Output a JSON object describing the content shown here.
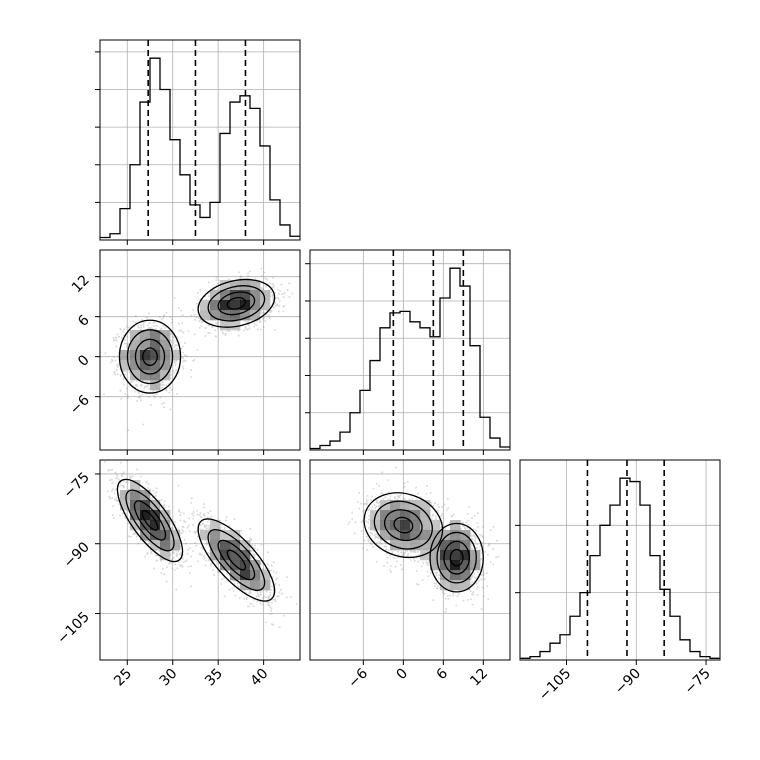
{
  "chart_data": {
    "type": "corner",
    "title": "",
    "parameters": [
      "",
      "",
      ""
    ],
    "ranges": [
      [
        22,
        44
      ],
      [
        -14,
        16
      ],
      [
        -115,
        -72
      ]
    ],
    "quantiles": [
      [
        27.3,
        32.5,
        38.0
      ],
      [
        -1.5,
        4.5,
        9.0
      ],
      [
        -100.5,
        -92.0,
        -84.0
      ]
    ],
    "ticks": {
      "p0": [
        25,
        30,
        35,
        40
      ],
      "p1": [
        -6,
        0,
        6,
        12
      ],
      "p2": [
        -105,
        -90,
        -75
      ]
    },
    "tick_labels": {
      "p0": [
        "25",
        "30",
        "35",
        "40"
      ],
      "p1": [
        "−6",
        "0",
        "6",
        "12"
      ],
      "p2": [
        "−105",
        "−90",
        "−75"
      ]
    },
    "histograms": [
      {
        "param": 0,
        "bin_edges": [
          22.0,
          23.1,
          24.2,
          25.3,
          26.4,
          27.5,
          28.6,
          29.7,
          30.8,
          31.9,
          33.0,
          34.1,
          35.2,
          36.3,
          37.4,
          38.5,
          39.6,
          40.7,
          41.8,
          42.9,
          44.0
        ],
        "counts": [
          2,
          5,
          25,
          60,
          110,
          145,
          120,
          80,
          52,
          28,
          18,
          30,
          85,
          110,
          115,
          105,
          75,
          32,
          12,
          3
        ]
      },
      {
        "param": 1,
        "bin_edges": [
          -14.0,
          -12.5,
          -11.0,
          -9.5,
          -8.0,
          -6.5,
          -5.0,
          -3.5,
          -2.0,
          -0.5,
          1.0,
          2.5,
          4.0,
          5.5,
          7.0,
          8.5,
          10.0,
          11.5,
          13.0,
          14.5,
          16.0
        ],
        "counts": [
          1,
          3,
          6,
          12,
          25,
          40,
          60,
          82,
          92,
          93,
          86,
          82,
          76,
          102,
          122,
          110,
          70,
          22,
          8,
          2
        ]
      },
      {
        "param": 2,
        "bin_edges": [
          -115.0,
          -112.85,
          -110.7,
          -108.55,
          -106.4,
          -104.25,
          -102.1,
          -99.95,
          -97.8,
          -95.65,
          -93.5,
          -91.35,
          -89.2,
          -87.05,
          -84.9,
          -82.75,
          -80.6,
          -78.45,
          -76.3,
          -74.15,
          -72.0
        ],
        "counts": [
          1,
          2,
          5,
          10,
          15,
          26,
          40,
          62,
          80,
          92,
          108,
          106,
          92,
          62,
          42,
          26,
          12,
          5,
          2,
          1
        ]
      }
    ],
    "density_clusters": [
      {
        "pair": [
          0,
          1
        ],
        "modes": [
          {
            "center": [
              27.5,
              0.0
            ],
            "sd": [
              1.6,
              2.6
            ],
            "corr": 0.0,
            "weight": 0.5
          },
          {
            "center": [
              37.0,
              8.0
            ],
            "sd": [
              2.0,
              1.7
            ],
            "corr": 0.25,
            "weight": 0.5
          }
        ]
      },
      {
        "pair": [
          0,
          2
        ],
        "modes": [
          {
            "center": [
              27.5,
              -85.0
            ],
            "sd": [
              1.7,
              4.2
            ],
            "corr": -0.75,
            "weight": 0.5
          },
          {
            "center": [
              37.0,
              -93.5
            ],
            "sd": [
              2.0,
              4.2
            ],
            "corr": -0.75,
            "weight": 0.5
          }
        ]
      },
      {
        "pair": [
          1,
          2
        ],
        "modes": [
          {
            "center": [
              0.0,
              -86.0
            ],
            "sd": [
              2.8,
              3.3
            ],
            "corr": -0.15,
            "weight": 0.5
          },
          {
            "center": [
              8.0,
              -93.0
            ],
            "sd": [
              1.9,
              3.5
            ],
            "corr": 0.0,
            "weight": 0.5
          }
        ]
      }
    ],
    "grid": true,
    "legend": "none",
    "colors": {
      "histogram": "#000000",
      "quantile_line": "#000000",
      "contour": "#000000",
      "scatter": "#8a8a8a",
      "grid": "#b0b0b0"
    }
  }
}
